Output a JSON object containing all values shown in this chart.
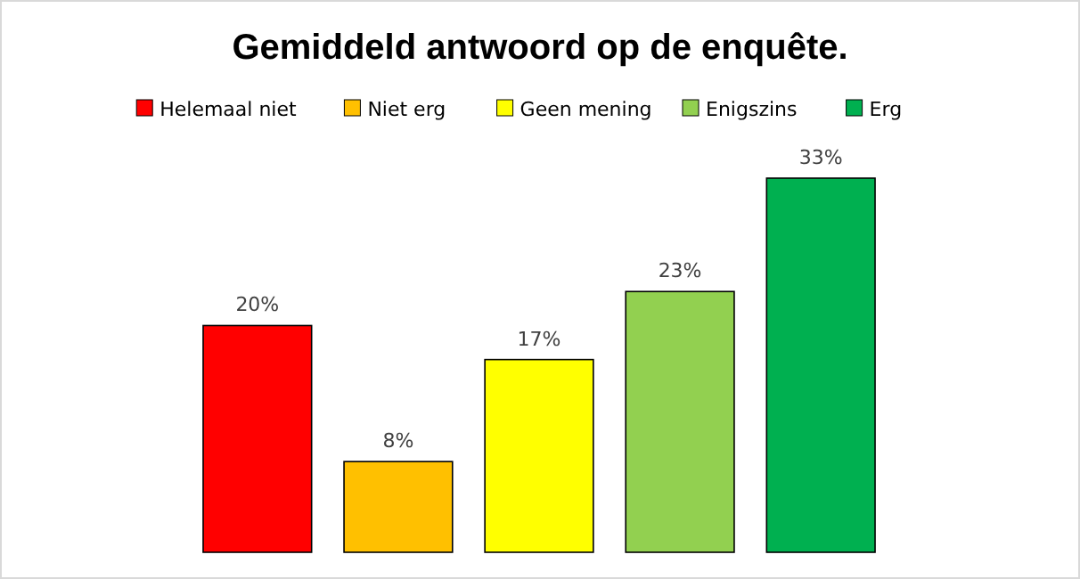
{
  "chart_data": {
    "type": "bar",
    "title": "Gemiddeld antwoord op de enquête.",
    "categories": [
      null
    ],
    "series": [
      {
        "name": "Helemaal niet",
        "color": "#ff0000",
        "values": [
          20
        ],
        "value_labels": [
          "20%"
        ]
      },
      {
        "name": "Niet erg",
        "color": "#ffc000",
        "values": [
          8
        ],
        "value_labels": [
          "8%"
        ]
      },
      {
        "name": "Geen mening",
        "color": "#ffff00",
        "values": [
          17
        ],
        "value_labels": [
          "17%"
        ]
      },
      {
        "name": "Enigszins",
        "color": "#92d050",
        "values": [
          23
        ],
        "value_labels": [
          "23%"
        ]
      },
      {
        "name": "Erg",
        "color": "#00b050",
        "values": [
          33
        ],
        "value_labels": [
          "33%"
        ]
      }
    ],
    "legend": "top"
  }
}
